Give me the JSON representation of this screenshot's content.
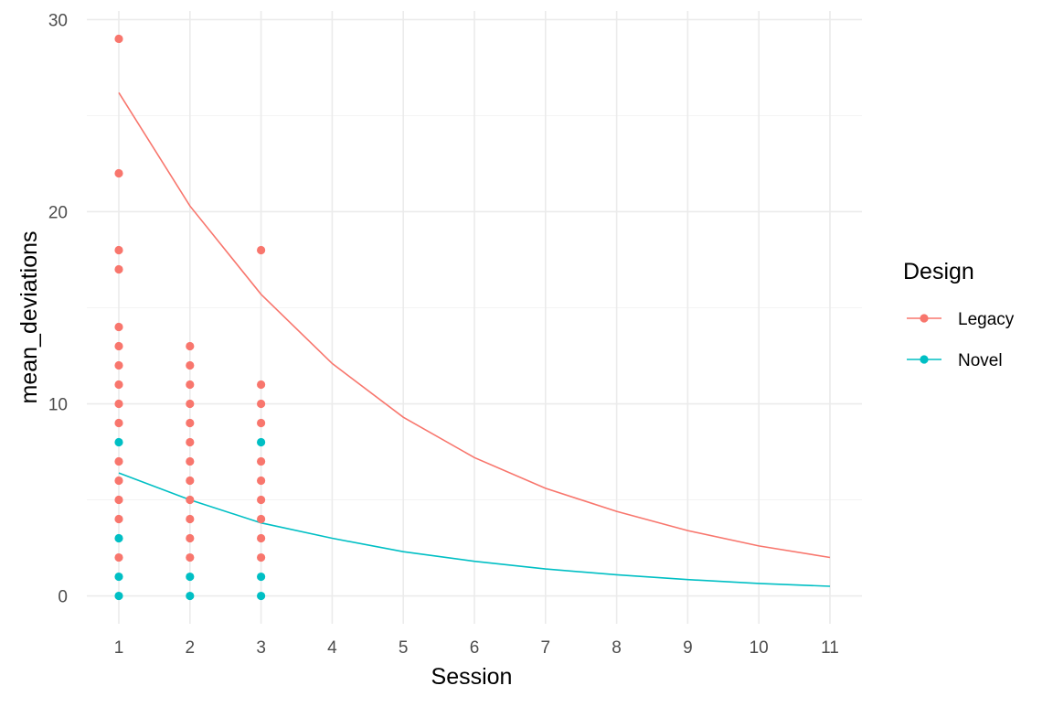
{
  "chart_data": {
    "type": "scatter",
    "title": "",
    "xlabel": "Session",
    "ylabel": "mean_deviations",
    "xlim": [
      0.55,
      11.45
    ],
    "ylim": [
      -1.45,
      30.45
    ],
    "xticks": [
      1,
      2,
      3,
      4,
      5,
      6,
      7,
      8,
      9,
      10,
      11
    ],
    "yticks": [
      0,
      10,
      20,
      30
    ],
    "grid": true,
    "legend": {
      "title": "Design",
      "position": "right"
    },
    "series": [
      {
        "name": "Legacy",
        "color": "#F8766D",
        "points": [
          {
            "x": 1,
            "y": 29
          },
          {
            "x": 1,
            "y": 22
          },
          {
            "x": 1,
            "y": 18
          },
          {
            "x": 1,
            "y": 17
          },
          {
            "x": 1,
            "y": 14
          },
          {
            "x": 1,
            "y": 13
          },
          {
            "x": 1,
            "y": 12
          },
          {
            "x": 1,
            "y": 11
          },
          {
            "x": 1,
            "y": 10
          },
          {
            "x": 1,
            "y": 9
          },
          {
            "x": 1,
            "y": 7
          },
          {
            "x": 1,
            "y": 6
          },
          {
            "x": 1,
            "y": 5
          },
          {
            "x": 1,
            "y": 4
          },
          {
            "x": 1,
            "y": 2
          },
          {
            "x": 2,
            "y": 13
          },
          {
            "x": 2,
            "y": 12
          },
          {
            "x": 2,
            "y": 11
          },
          {
            "x": 2,
            "y": 10
          },
          {
            "x": 2,
            "y": 9
          },
          {
            "x": 2,
            "y": 8
          },
          {
            "x": 2,
            "y": 7
          },
          {
            "x": 2,
            "y": 6
          },
          {
            "x": 2,
            "y": 5
          },
          {
            "x": 2,
            "y": 4
          },
          {
            "x": 2,
            "y": 3
          },
          {
            "x": 2,
            "y": 2
          },
          {
            "x": 3,
            "y": 18
          },
          {
            "x": 3,
            "y": 11
          },
          {
            "x": 3,
            "y": 10
          },
          {
            "x": 3,
            "y": 9
          },
          {
            "x": 3,
            "y": 7
          },
          {
            "x": 3,
            "y": 6
          },
          {
            "x": 3,
            "y": 5
          },
          {
            "x": 3,
            "y": 4
          },
          {
            "x": 3,
            "y": 3
          },
          {
            "x": 3,
            "y": 2
          }
        ],
        "fit": [
          {
            "x": 1,
            "y": 26.2
          },
          {
            "x": 2,
            "y": 20.3
          },
          {
            "x": 3,
            "y": 15.7
          },
          {
            "x": 4,
            "y": 12.1
          },
          {
            "x": 5,
            "y": 9.3
          },
          {
            "x": 6,
            "y": 7.2
          },
          {
            "x": 7,
            "y": 5.6
          },
          {
            "x": 8,
            "y": 4.4
          },
          {
            "x": 9,
            "y": 3.4
          },
          {
            "x": 10,
            "y": 2.6
          },
          {
            "x": 11,
            "y": 2.0
          }
        ]
      },
      {
        "name": "Novel",
        "color": "#00BFC4",
        "points": [
          {
            "x": 1,
            "y": 8
          },
          {
            "x": 1,
            "y": 3
          },
          {
            "x": 1,
            "y": 1
          },
          {
            "x": 1,
            "y": 0
          },
          {
            "x": 2,
            "y": 1
          },
          {
            "x": 2,
            "y": 0
          },
          {
            "x": 3,
            "y": 8
          },
          {
            "x": 3,
            "y": 1
          },
          {
            "x": 3,
            "y": 0
          }
        ],
        "fit": [
          {
            "x": 1,
            "y": 6.4
          },
          {
            "x": 2,
            "y": 5.0
          },
          {
            "x": 3,
            "y": 3.8
          },
          {
            "x": 4,
            "y": 3.0
          },
          {
            "x": 5,
            "y": 2.3
          },
          {
            "x": 6,
            "y": 1.8
          },
          {
            "x": 7,
            "y": 1.4
          },
          {
            "x": 8,
            "y": 1.1
          },
          {
            "x": 9,
            "y": 0.85
          },
          {
            "x": 10,
            "y": 0.65
          },
          {
            "x": 11,
            "y": 0.5
          }
        ]
      }
    ]
  }
}
